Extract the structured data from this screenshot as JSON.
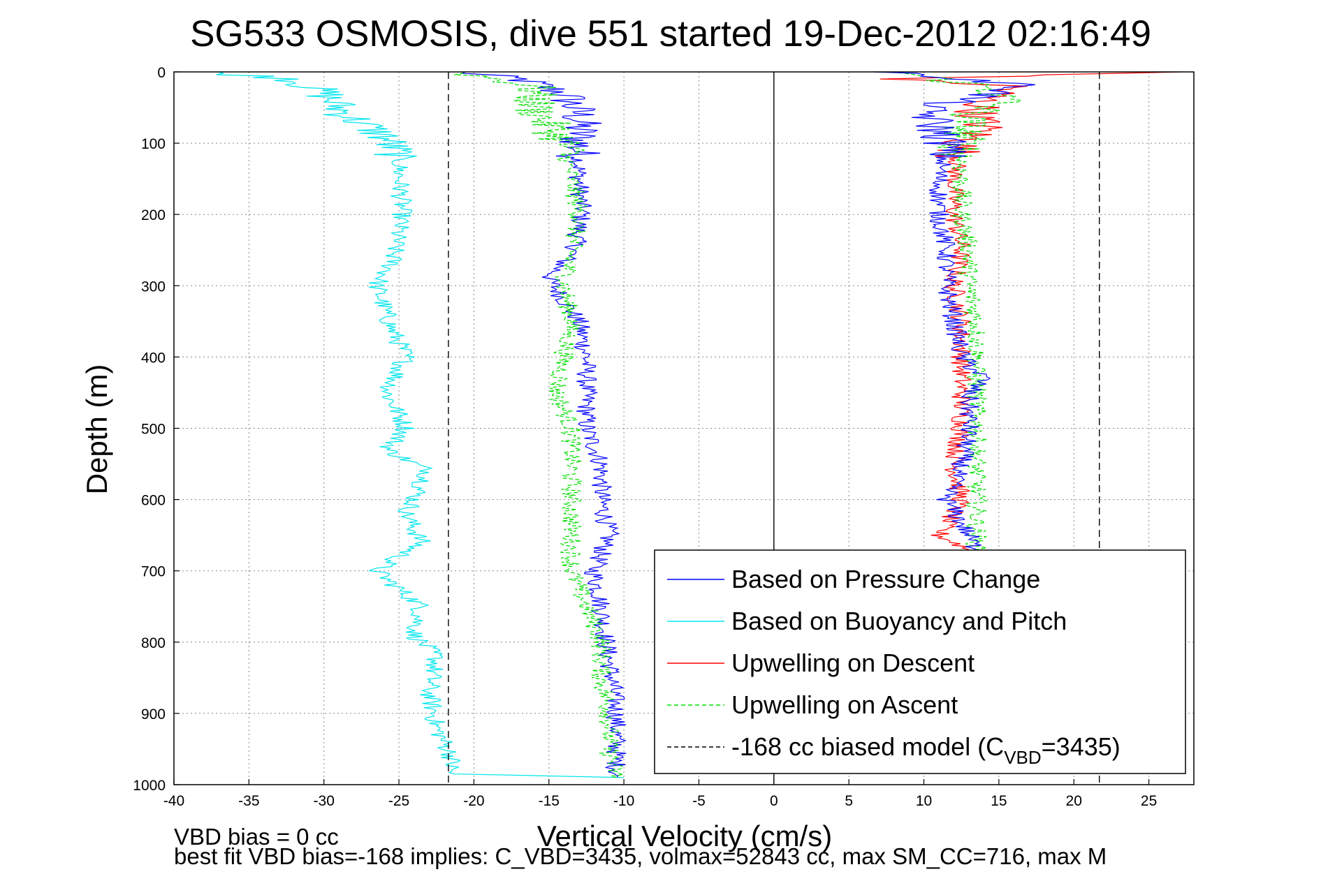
{
  "chart_data": {
    "type": "line",
    "title": "SG533 OSMOSIS, dive 551 started 19-Dec-2012 02:16:49",
    "xlabel": "Vertical Velocity (cm/s)",
    "ylabel": "Depth (m)",
    "xlim": [
      -40,
      28
    ],
    "ylim": [
      1000,
      0
    ],
    "x_ticks": [
      -40,
      -35,
      -30,
      -25,
      -20,
      -15,
      -10,
      -5,
      0,
      5,
      10,
      15,
      20,
      25
    ],
    "y_ticks": [
      0,
      100,
      200,
      300,
      400,
      500,
      600,
      700,
      800,
      900,
      1000
    ],
    "grid": true,
    "legend_position": "bottom-right",
    "series": [
      {
        "name": "Based on Pressure Change",
        "color": "#0000ff",
        "style": "solid",
        "points": [
          {
            "depth": 0,
            "v": -21
          },
          {
            "depth": 10,
            "v": -17
          },
          {
            "depth": 30,
            "v": -14
          },
          {
            "depth": 60,
            "v": -13
          },
          {
            "depth": 100,
            "v": -13
          },
          {
            "depth": 150,
            "v": -13
          },
          {
            "depth": 200,
            "v": -12.8
          },
          {
            "depth": 250,
            "v": -13.3
          },
          {
            "depth": 290,
            "v": -15
          },
          {
            "depth": 320,
            "v": -14
          },
          {
            "depth": 350,
            "v": -13
          },
          {
            "depth": 400,
            "v": -12.5
          },
          {
            "depth": 450,
            "v": -12.5
          },
          {
            "depth": 500,
            "v": -12.5
          },
          {
            "depth": 550,
            "v": -11.5
          },
          {
            "depth": 600,
            "v": -11.5
          },
          {
            "depth": 650,
            "v": -11
          },
          {
            "depth": 700,
            "v": -12
          },
          {
            "depth": 750,
            "v": -11.5
          },
          {
            "depth": 800,
            "v": -11.2
          },
          {
            "depth": 850,
            "v": -10.8
          },
          {
            "depth": 900,
            "v": -10.5
          },
          {
            "depth": 950,
            "v": -10.5
          },
          {
            "depth": 990,
            "v": -10.5
          }
        ]
      },
      {
        "name": "Based on Buoyancy and Pitch",
        "color": "#00e5ee",
        "style": "solid",
        "points": [
          {
            "depth": 0,
            "v": -38
          },
          {
            "depth": 10,
            "v": -32
          },
          {
            "depth": 30,
            "v": -30
          },
          {
            "depth": 60,
            "v": -28.5
          },
          {
            "depth": 90,
            "v": -26
          },
          {
            "depth": 120,
            "v": -25
          },
          {
            "depth": 200,
            "v": -24.8
          },
          {
            "depth": 270,
            "v": -25.5
          },
          {
            "depth": 300,
            "v": -26.5
          },
          {
            "depth": 360,
            "v": -25.5
          },
          {
            "depth": 400,
            "v": -24.5
          },
          {
            "depth": 450,
            "v": -25.8
          },
          {
            "depth": 500,
            "v": -24.5
          },
          {
            "depth": 530,
            "v": -25.8
          },
          {
            "depth": 560,
            "v": -23
          },
          {
            "depth": 620,
            "v": -24.5
          },
          {
            "depth": 660,
            "v": -23.5
          },
          {
            "depth": 700,
            "v": -26.5
          },
          {
            "depth": 750,
            "v": -23.5
          },
          {
            "depth": 790,
            "v": -24
          },
          {
            "depth": 820,
            "v": -22.5
          },
          {
            "depth": 870,
            "v": -23
          },
          {
            "depth": 920,
            "v": -22.5
          },
          {
            "depth": 960,
            "v": -21.5
          },
          {
            "depth": 985,
            "v": -21.5
          },
          {
            "depth": 990,
            "v": -10
          }
        ]
      },
      {
        "name": "Upwelling on Descent",
        "color": "#ff0000",
        "style": "solid",
        "points": [
          {
            "depth": 0,
            "v": 27
          },
          {
            "depth": 10,
            "v": 8
          },
          {
            "depth": 20,
            "v": 16
          },
          {
            "depth": 40,
            "v": 14
          },
          {
            "depth": 60,
            "v": 13.5
          },
          {
            "depth": 80,
            "v": 14
          },
          {
            "depth": 100,
            "v": 12.5
          },
          {
            "depth": 150,
            "v": 12
          },
          {
            "depth": 200,
            "v": 12
          },
          {
            "depth": 250,
            "v": 12.5
          },
          {
            "depth": 300,
            "v": 12
          },
          {
            "depth": 350,
            "v": 12.5
          },
          {
            "depth": 400,
            "v": 12.5
          },
          {
            "depth": 450,
            "v": 12.5
          },
          {
            "depth": 500,
            "v": 12.5
          },
          {
            "depth": 550,
            "v": 12
          },
          {
            "depth": 600,
            "v": 12.5
          },
          {
            "depth": 650,
            "v": 11
          },
          {
            "depth": 670,
            "v": 13
          }
        ]
      },
      {
        "name": "Upwelling on Ascent",
        "color": "#00dd00",
        "style": "dashed",
        "points": [
          {
            "depth": 0,
            "v": -21
          },
          {
            "depth": 20,
            "v": -16
          },
          {
            "depth": 50,
            "v": -16
          },
          {
            "depth": 100,
            "v": -14
          },
          {
            "depth": 150,
            "v": -13.5
          },
          {
            "depth": 200,
            "v": -13
          },
          {
            "depth": 250,
            "v": -13.5
          },
          {
            "depth": 300,
            "v": -14
          },
          {
            "depth": 350,
            "v": -13.5
          },
          {
            "depth": 400,
            "v": -14
          },
          {
            "depth": 450,
            "v": -14.5
          },
          {
            "depth": 500,
            "v": -13.5
          },
          {
            "depth": 550,
            "v": -13.5
          },
          {
            "depth": 600,
            "v": -13.5
          },
          {
            "depth": 650,
            "v": -13.5
          },
          {
            "depth": 700,
            "v": -13.5
          },
          {
            "depth": 750,
            "v": -12.5
          },
          {
            "depth": 800,
            "v": -11.5
          },
          {
            "depth": 850,
            "v": -11.5
          },
          {
            "depth": 900,
            "v": -11
          },
          {
            "depth": 950,
            "v": -11
          },
          {
            "depth": 990,
            "v": -10.5
          }
        ]
      },
      {
        "name": "",
        "color": "#00dd00",
        "style": "dashed",
        "points": [
          {
            "depth": 0,
            "v": 8
          },
          {
            "depth": 20,
            "v": 14
          },
          {
            "depth": 40,
            "v": 15.5
          },
          {
            "depth": 60,
            "v": 13
          },
          {
            "depth": 100,
            "v": 12.5
          },
          {
            "depth": 150,
            "v": 12.5
          },
          {
            "depth": 200,
            "v": 12.5
          },
          {
            "depth": 250,
            "v": 13
          },
          {
            "depth": 300,
            "v": 13
          },
          {
            "depth": 350,
            "v": 13.5
          },
          {
            "depth": 400,
            "v": 13.5
          },
          {
            "depth": 450,
            "v": 13.5
          },
          {
            "depth": 500,
            "v": 13.5
          },
          {
            "depth": 550,
            "v": 13.5
          },
          {
            "depth": 600,
            "v": 13.5
          },
          {
            "depth": 650,
            "v": 13.5
          },
          {
            "depth": 670,
            "v": 13.5
          }
        ]
      },
      {
        "name": "",
        "color": "#0000ff",
        "style": "solid",
        "points": [
          {
            "depth": 0,
            "v": 8
          },
          {
            "depth": 20,
            "v": 17
          },
          {
            "depth": 50,
            "v": 10
          },
          {
            "depth": 100,
            "v": 11.5
          },
          {
            "depth": 150,
            "v": 11
          },
          {
            "depth": 200,
            "v": 11
          },
          {
            "depth": 250,
            "v": 11.5
          },
          {
            "depth": 300,
            "v": 11.5
          },
          {
            "depth": 350,
            "v": 12
          },
          {
            "depth": 400,
            "v": 12.5
          },
          {
            "depth": 430,
            "v": 14
          },
          {
            "depth": 450,
            "v": 13
          },
          {
            "depth": 500,
            "v": 13
          },
          {
            "depth": 550,
            "v": 12.5
          },
          {
            "depth": 600,
            "v": 11.5
          },
          {
            "depth": 650,
            "v": 13
          },
          {
            "depth": 670,
            "v": 13.5
          }
        ]
      }
    ],
    "reference_lines": [
      {
        "name": "-168 cc biased model (C_VBD=3435)",
        "x": -21.7,
        "style": "dashed",
        "color": "#000000"
      },
      {
        "name": "",
        "x": 21.7,
        "style": "dashed",
        "color": "#000000"
      },
      {
        "name": "",
        "x": 0,
        "style": "solid",
        "color": "#000000"
      }
    ],
    "legend": [
      {
        "label": "Based on Pressure Change",
        "color": "#0000ff",
        "style": "solid"
      },
      {
        "label": "Based on Buoyancy and Pitch",
        "color": "#00e5ee",
        "style": "solid"
      },
      {
        "label": "Upwelling on Descent",
        "color": "#ff0000",
        "style": "solid"
      },
      {
        "label": "Upwelling on Ascent",
        "color": "#00dd00",
        "style": "dashed"
      },
      {
        "label": "-168 cc biased model (C",
        "sub": "VBD",
        "suffix": "=3435)",
        "color": "#000000",
        "style": "dashed"
      }
    ],
    "footnotes": [
      "VBD bias = 0 cc",
      "best fit VBD bias=-168 implies: C_VBD=3435, volmax=52843 cc, max SM_CC=716, max M"
    ]
  }
}
